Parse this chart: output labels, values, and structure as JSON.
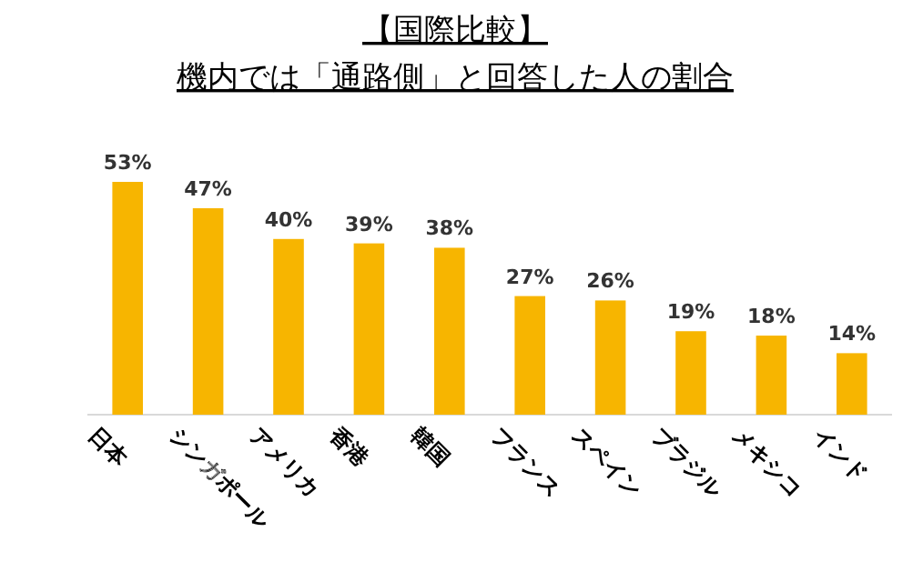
{
  "chart_data": {
    "type": "bar",
    "title": "【国際比較】",
    "subtitle": "機内では「通路側」と回答した人の割合",
    "categories": [
      "日本",
      "シンガポール",
      "アメリカ",
      "香港",
      "韓国",
      "フランス",
      "スペイン",
      "ブラジル",
      "メキシコ",
      "インド"
    ],
    "values": [
      53,
      47,
      40,
      39,
      38,
      27,
      26,
      19,
      18,
      14
    ],
    "value_labels": [
      "53%",
      "47%",
      "40%",
      "39%",
      "38%",
      "27%",
      "26%",
      "19%",
      "18%",
      "14%"
    ],
    "color": "#f7b500"
  }
}
